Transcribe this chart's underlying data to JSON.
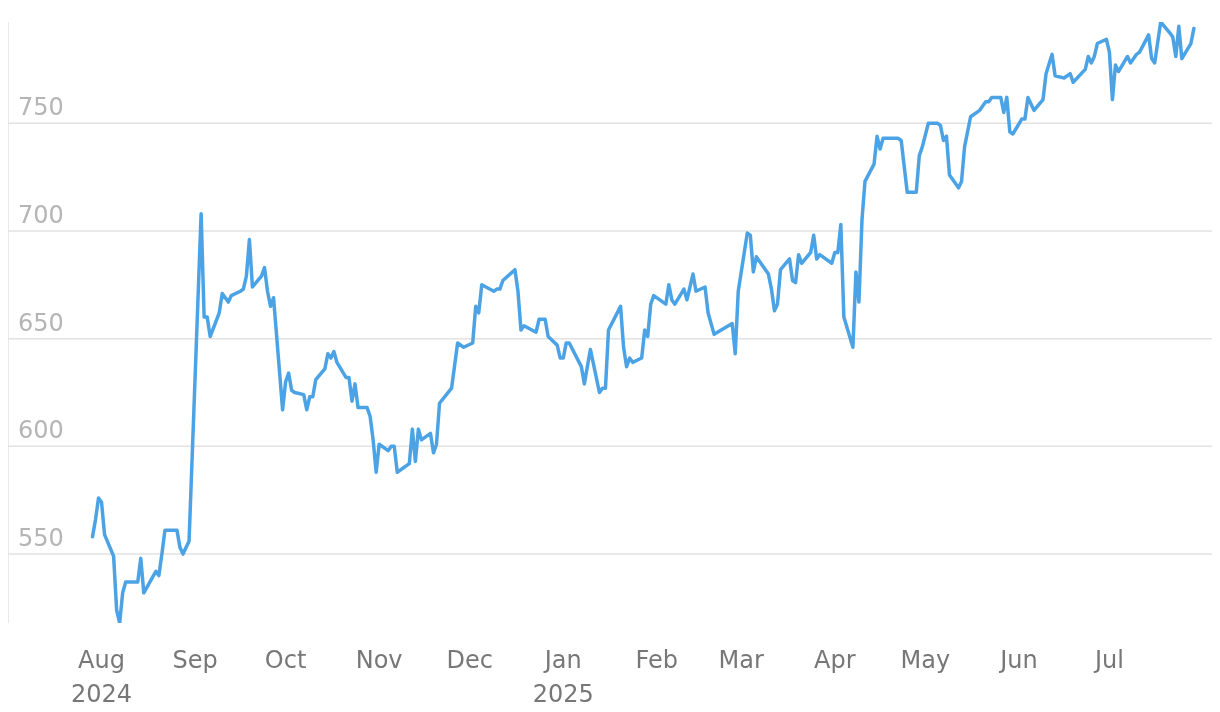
{
  "chart_data": {
    "type": "line",
    "x": [
      "2024-07-29",
      "2024-07-30",
      "2024-07-31",
      "2024-08-01",
      "2024-08-02",
      "2024-08-05",
      "2024-08-06",
      "2024-08-07",
      "2024-08-08",
      "2024-08-09",
      "2024-08-12",
      "2024-08-13",
      "2024-08-14",
      "2024-08-15",
      "2024-08-19",
      "2024-08-20",
      "2024-08-21",
      "2024-08-22",
      "2024-08-26",
      "2024-08-27",
      "2024-08-28",
      "2024-08-29",
      "2024-08-30",
      "2024-09-03",
      "2024-09-04",
      "2024-09-05",
      "2024-09-06",
      "2024-09-09",
      "2024-09-10",
      "2024-09-12",
      "2024-09-13",
      "2024-09-16",
      "2024-09-17",
      "2024-09-18",
      "2024-09-19",
      "2024-09-20",
      "2024-09-23",
      "2024-09-24",
      "2024-09-25",
      "2024-09-26",
      "2024-09-27",
      "2024-09-30",
      "2024-10-01",
      "2024-10-02",
      "2024-10-03",
      "2024-10-04",
      "2024-10-07",
      "2024-10-08",
      "2024-10-09",
      "2024-10-10",
      "2024-10-11",
      "2024-10-14",
      "2024-10-15",
      "2024-10-16",
      "2024-10-17",
      "2024-10-18",
      "2024-10-21",
      "2024-10-22",
      "2024-10-23",
      "2024-10-24",
      "2024-10-25",
      "2024-10-28",
      "2024-10-29",
      "2024-10-30",
      "2024-10-31",
      "2024-11-01",
      "2024-11-04",
      "2024-11-05",
      "2024-11-06",
      "2024-11-07",
      "2024-11-11",
      "2024-11-12",
      "2024-11-13",
      "2024-11-14",
      "2024-11-15",
      "2024-11-18",
      "2024-11-19",
      "2024-11-20",
      "2024-11-21",
      "2024-11-25",
      "2024-11-27",
      "2024-11-29",
      "2024-12-02",
      "2024-12-03",
      "2024-12-04",
      "2024-12-05",
      "2024-12-09",
      "2024-12-10",
      "2024-12-11",
      "2024-12-12",
      "2024-12-16",
      "2024-12-17",
      "2024-12-18",
      "2024-12-19",
      "2024-12-23",
      "2024-12-24",
      "2024-12-26",
      "2024-12-27",
      "2024-12-30",
      "2024-12-31",
      "2025-01-01",
      "2025-01-02",
      "2025-01-03",
      "2025-01-07",
      "2025-01-08",
      "2025-01-10",
      "2025-01-13",
      "2025-01-14",
      "2025-01-15",
      "2025-01-16",
      "2025-01-20",
      "2025-01-21",
      "2025-01-22",
      "2025-01-23",
      "2025-01-24",
      "2025-01-27",
      "2025-01-28",
      "2025-01-29",
      "2025-01-30",
      "2025-01-31",
      "2025-02-04",
      "2025-02-05",
      "2025-02-06",
      "2025-02-07",
      "2025-02-10",
      "2025-02-11",
      "2025-02-13",
      "2025-02-14",
      "2025-02-17",
      "2025-02-18",
      "2025-02-20",
      "2025-02-26",
      "2025-02-27",
      "2025-02-28",
      "2025-03-03",
      "2025-03-04",
      "2025-03-05",
      "2025-03-06",
      "2025-03-10",
      "2025-03-11",
      "2025-03-12",
      "2025-03-13",
      "2025-03-14",
      "2025-03-17",
      "2025-03-18",
      "2025-03-19",
      "2025-03-20",
      "2025-03-21",
      "2025-03-24",
      "2025-03-25",
      "2025-03-26",
      "2025-03-27",
      "2025-03-31",
      "2025-04-01",
      "2025-04-02",
      "2025-04-03",
      "2025-04-04",
      "2025-04-07",
      "2025-04-08",
      "2025-04-09",
      "2025-04-10",
      "2025-04-11",
      "2025-04-14",
      "2025-04-15",
      "2025-04-16",
      "2025-04-17",
      "2025-04-22",
      "2025-04-23",
      "2025-04-25",
      "2025-04-28",
      "2025-04-29",
      "2025-04-30",
      "2025-05-02",
      "2025-05-05",
      "2025-05-06",
      "2025-05-07",
      "2025-05-08",
      "2025-05-09",
      "2025-05-12",
      "2025-05-13",
      "2025-05-14",
      "2025-05-16",
      "2025-05-19",
      "2025-05-21",
      "2025-05-22",
      "2025-05-23",
      "2025-05-26",
      "2025-05-27",
      "2025-05-28",
      "2025-05-29",
      "2025-05-30",
      "2025-06-02",
      "2025-06-03",
      "2025-06-04",
      "2025-06-06",
      "2025-06-09",
      "2025-06-10",
      "2025-06-12",
      "2025-06-13",
      "2025-06-16",
      "2025-06-18",
      "2025-06-19",
      "2025-06-23",
      "2025-06-24",
      "2025-06-25",
      "2025-06-26",
      "2025-06-27",
      "2025-06-30",
      "2025-07-01",
      "2025-07-02",
      "2025-07-03",
      "2025-07-04",
      "2025-07-07",
      "2025-07-08",
      "2025-07-10",
      "2025-07-11",
      "2025-07-14",
      "2025-07-15",
      "2025-07-16",
      "2025-07-18",
      "2025-07-21",
      "2025-07-22",
      "2025-07-23",
      "2025-07-24",
      "2025-07-25",
      "2025-07-28",
      "2025-07-29"
    ],
    "series": [
      {
        "color": "#4ba3e6",
        "values": [
          558,
          566,
          576,
          574,
          559,
          549,
          524,
          518,
          532,
          537,
          537,
          537,
          548,
          532,
          542,
          540,
          550,
          561,
          561,
          553,
          550,
          553,
          556,
          708,
          660,
          660,
          651,
          662,
          671,
          667,
          670,
          672,
          673,
          679,
          696,
          674,
          679,
          683,
          672,
          665,
          669,
          617,
          630,
          634,
          626,
          625,
          624,
          617,
          623,
          623,
          631,
          636,
          643,
          641,
          644,
          639,
          632,
          632,
          621,
          629,
          618,
          618,
          614,
          603,
          588,
          601,
          598,
          600,
          600,
          588,
          592,
          608,
          593,
          608,
          603,
          606,
          597,
          601,
          620,
          627,
          648,
          646,
          648,
          665,
          662,
          675,
          672,
          673,
          673,
          677,
          682,
          672,
          654,
          656,
          653,
          659,
          659,
          651,
          647,
          641,
          641,
          648,
          648,
          637,
          629,
          645,
          625,
          627,
          627,
          654,
          665,
          646,
          637,
          641,
          639,
          641,
          654,
          651,
          666,
          670,
          666,
          675,
          668,
          666,
          673,
          668,
          680,
          672,
          674,
          662,
          652,
          657,
          643,
          672,
          699,
          698,
          681,
          688,
          680,
          673,
          663,
          666,
          682,
          687,
          677,
          676,
          689,
          685,
          690,
          698,
          687,
          689,
          685,
          690,
          690,
          703,
          660,
          646,
          681,
          667,
          705,
          723,
          731,
          744,
          738,
          743,
          743,
          742,
          718,
          718,
          735,
          739,
          750,
          750,
          749,
          742,
          744,
          726,
          720,
          723,
          739,
          753,
          756,
          760,
          760,
          762,
          762,
          755,
          762,
          746,
          745,
          752,
          752,
          762,
          756,
          761,
          773,
          782,
          772,
          771,
          773,
          769,
          775,
          781,
          778,
          781,
          787,
          789,
          783,
          761,
          777,
          774,
          781,
          778,
          782,
          783,
          791,
          780,
          778,
          797,
          792,
          790,
          781,
          795,
          780,
          787,
          794
        ]
      }
    ],
    "xlim": [
      "2024-07-01",
      "2025-08-04"
    ],
    "xticks": [
      {
        "value": "2024-08-01",
        "label": "Aug 2024"
      },
      {
        "value": "2024-09-01",
        "label": "Sep"
      },
      {
        "value": "2024-10-01",
        "label": "Oct"
      },
      {
        "value": "2024-11-01",
        "label": "Nov"
      },
      {
        "value": "2024-12-01",
        "label": "Dec"
      },
      {
        "value": "2025-01-01",
        "label": "Jan 2025"
      },
      {
        "value": "2025-02-01",
        "label": "Feb"
      },
      {
        "value": "2025-03-01",
        "label": "Mar"
      },
      {
        "value": "2025-04-01",
        "label": "Apr"
      },
      {
        "value": "2025-05-01",
        "label": "May"
      },
      {
        "value": "2025-06-01",
        "label": "Jun"
      },
      {
        "value": "2025-07-01",
        "label": "Jul"
      }
    ],
    "ylim": [
      518,
      797
    ],
    "yticks": [
      550,
      600,
      650,
      700,
      750
    ],
    "grid": "y",
    "marker": "none",
    "line_style": "solid"
  }
}
